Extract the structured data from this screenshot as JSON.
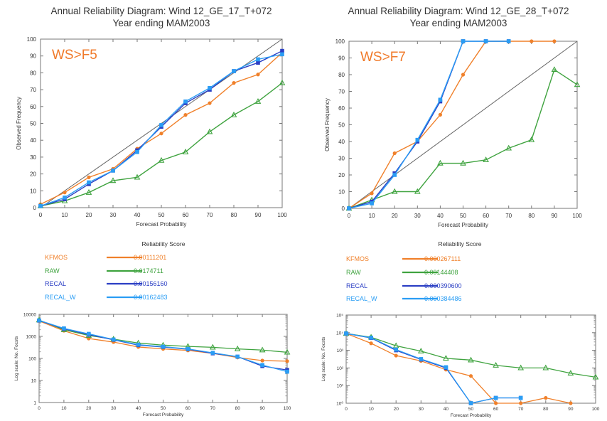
{
  "colors": {
    "KFMOS": "#f0802a",
    "RAW": "#3fa33f",
    "RECAL": "#2b3fc4",
    "RECAL_W": "#2a9df4",
    "diag": "#666666",
    "ws": "#f07a2a"
  },
  "chart_data": [
    {
      "type": "line",
      "title": "Annual Reliability Diagram: Wind 12_GE_17_T+072",
      "subtitle": "Year ending MAM2003",
      "annotation": "WS>F5",
      "xlabel": "Forecast Probability",
      "ylabel": "Observed Frequency",
      "xlim": [
        0,
        100
      ],
      "ylim": [
        0,
        100
      ],
      "xticks": [
        0,
        10,
        20,
        30,
        40,
        50,
        60,
        70,
        80,
        90,
        100
      ],
      "yticks": [
        0,
        10,
        20,
        30,
        40,
        50,
        60,
        70,
        80,
        90,
        100
      ],
      "grid": false,
      "x": [
        0,
        10,
        20,
        30,
        40,
        50,
        60,
        70,
        80,
        90,
        100
      ],
      "series": [
        {
          "name": "KFMOS",
          "color": "#f0802a",
          "marker": "circle",
          "values": [
            2,
            9,
            18,
            23,
            35,
            44,
            55,
            62,
            74,
            79,
            92
          ]
        },
        {
          "name": "RAW",
          "color": "#3fa33f",
          "marker": "triangle",
          "values": [
            1,
            4,
            9,
            16,
            18,
            28,
            33,
            45,
            55,
            63,
            74
          ]
        },
        {
          "name": "RECAL",
          "color": "#2b3fc4",
          "marker": "square",
          "values": [
            1,
            5,
            14,
            22,
            34,
            48,
            62,
            70,
            81,
            86,
            93
          ]
        },
        {
          "name": "RECAL_W",
          "color": "#2a9df4",
          "marker": "square",
          "values": [
            1,
            6,
            15,
            22,
            33,
            49,
            63,
            71,
            81,
            88,
            91
          ]
        }
      ],
      "reliability_score": {
        "title": "Reliability Score",
        "entries": [
          {
            "name": "KFMOS",
            "value": "0.00111201"
          },
          {
            "name": "RAW",
            "value": "0.0174711"
          },
          {
            "name": "RECAL",
            "value": "0.00156160"
          },
          {
            "name": "RECAL_W",
            "value": "0.00162483"
          }
        ]
      },
      "count_chart": {
        "type": "line",
        "scale": "log",
        "xlabel": "Forecast Probability",
        "ylabel": "Log scale: No. Focsts",
        "ylim": [
          1,
          10000
        ],
        "yticks": [
          "1",
          "10",
          "100",
          "1000",
          "10000"
        ],
        "xticks": [
          0,
          10,
          20,
          30,
          40,
          50,
          60,
          70,
          80,
          90,
          100
        ],
        "x": [
          0,
          10,
          20,
          30,
          40,
          50,
          60,
          70,
          80,
          90,
          100
        ],
        "series": [
          {
            "name": "KFMOS",
            "color": "#f0802a",
            "marker": "circle",
            "values": [
              5000,
              1800,
              800,
              550,
              330,
              270,
              230,
              170,
              110,
              80,
              75
            ]
          },
          {
            "name": "RAW",
            "color": "#3fa33f",
            "marker": "triangle",
            "values": [
              5500,
              2000,
              1100,
              750,
              500,
              400,
              350,
              320,
              270,
              240,
              190
            ]
          },
          {
            "name": "RECAL",
            "color": "#2b3fc4",
            "marker": "square",
            "values": [
              5200,
              2200,
              1200,
              700,
              400,
              330,
              260,
              170,
              120,
              45,
              30
            ]
          },
          {
            "name": "RECAL_W",
            "color": "#2a9df4",
            "marker": "square",
            "values": [
              5300,
              2300,
              1300,
              720,
              420,
              340,
              270,
              180,
              120,
              50,
              25
            ]
          }
        ]
      }
    },
    {
      "type": "line",
      "title": "Annual Reliability Diagram: Wind 12_GE_28_T+072",
      "subtitle": "Year ending MAM2003",
      "annotation": "WS>F7",
      "xlabel": "Forecast Probability",
      "ylabel": "Observed Frequency",
      "xlim": [
        0,
        100
      ],
      "ylim": [
        0,
        100
      ],
      "xticks": [
        0,
        10,
        20,
        30,
        40,
        50,
        60,
        70,
        80,
        90,
        100
      ],
      "yticks": [
        0,
        10,
        20,
        30,
        40,
        50,
        60,
        70,
        80,
        90,
        100
      ],
      "grid": false,
      "series": [
        {
          "name": "KFMOS",
          "color": "#f0802a",
          "marker": "circle",
          "x": [
            0,
            10,
            20,
            30,
            40,
            50,
            60,
            70,
            80,
            90
          ],
          "values": [
            0,
            9,
            33,
            40,
            56,
            80,
            100,
            100,
            100,
            100
          ]
        },
        {
          "name": "RAW",
          "color": "#3fa33f",
          "marker": "triangle",
          "x": [
            0,
            10,
            20,
            30,
            40,
            50,
            60,
            70,
            80,
            90,
            100
          ],
          "values": [
            0,
            5,
            10,
            10,
            27,
            27,
            29,
            36,
            41,
            83,
            74
          ]
        },
        {
          "name": "RECAL",
          "color": "#2b3fc4",
          "marker": "square",
          "x": [
            0,
            10,
            20,
            30,
            40,
            50,
            60,
            70
          ],
          "values": [
            0,
            4,
            21,
            40,
            64,
            100,
            100,
            100
          ]
        },
        {
          "name": "RECAL_W",
          "color": "#2a9df4",
          "marker": "square",
          "x": [
            0,
            10,
            20,
            30,
            40,
            50,
            60,
            70
          ],
          "values": [
            0,
            3,
            20,
            41,
            65,
            100,
            100,
            100
          ]
        }
      ],
      "reliability_score": {
        "title": "Reliability Score",
        "entries": [
          {
            "name": "KFMOS",
            "value": "0.000267111"
          },
          {
            "name": "RAW",
            "value": "0.00144408"
          },
          {
            "name": "RECAL",
            "value": "0.000390600"
          },
          {
            "name": "RECAL_W",
            "value": "0.000384486"
          }
        ]
      },
      "count_chart": {
        "type": "line",
        "scale": "log",
        "xlabel": "Forecast Probability",
        "ylabel": "Log scale: No. Focsts",
        "ylim": [
          1,
          100000
        ],
        "yticks": [
          "10⁰",
          "10¹",
          "10²",
          "10³",
          "10⁴",
          "10⁵"
        ],
        "xticks": [
          0,
          10,
          20,
          30,
          40,
          50,
          60,
          70,
          80,
          90,
          100
        ],
        "series": [
          {
            "name": "KFMOS",
            "color": "#f0802a",
            "marker": "circle",
            "x": [
              0,
              10,
              20,
              30,
              40,
              50,
              60,
              70,
              80,
              90
            ],
            "values": [
              9000,
              2500,
              500,
              250,
              80,
              35,
              1,
              1,
              2,
              1
            ]
          },
          {
            "name": "RAW",
            "color": "#3fa33f",
            "marker": "triangle",
            "x": [
              0,
              10,
              20,
              30,
              40,
              50,
              60,
              70,
              80,
              90,
              100
            ],
            "values": [
              9000,
              5500,
              1800,
              900,
              350,
              280,
              140,
              100,
              100,
              50,
              30
            ]
          },
          {
            "name": "RECAL",
            "color": "#2b3fc4",
            "marker": "square",
            "x": [
              0,
              10,
              20,
              30,
              40,
              50,
              60,
              70
            ],
            "values": [
              9000,
              5000,
              1000,
              300,
              100,
              1,
              2,
              2
            ]
          },
          {
            "name": "RECAL_W",
            "color": "#2a9df4",
            "marker": "square",
            "x": [
              0,
              10,
              20,
              30,
              40,
              50,
              60,
              70
            ],
            "values": [
              9000,
              5200,
              1100,
              320,
              110,
              1,
              2,
              2
            ]
          }
        ]
      }
    }
  ]
}
